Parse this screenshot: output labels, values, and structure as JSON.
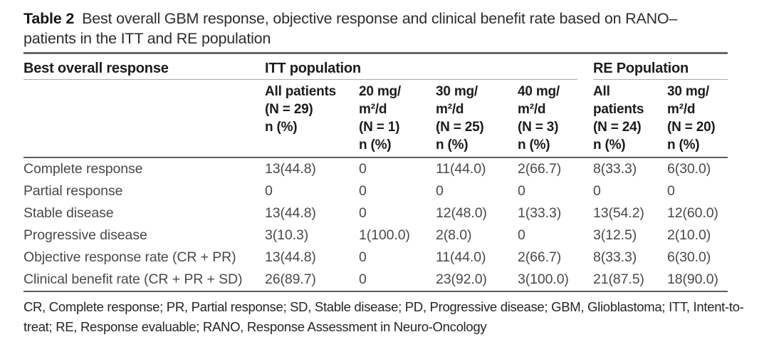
{
  "caption": {
    "label": "Table 2",
    "line1": "Best overall GBM response, objective response and clinical benefit rate based on RANO–",
    "line2": "patients in the ITT and RE population"
  },
  "table": {
    "stub_header": "Best overall response",
    "groups": [
      {
        "label": "ITT population",
        "span": 4
      },
      {
        "label": "RE Population",
        "span": 2
      }
    ],
    "columns": [
      {
        "lines": [
          "All patients",
          "(N = 29)",
          "n (%)"
        ]
      },
      {
        "lines": [
          "20 mg/",
          "m²/d",
          "(N = 1)",
          "n (%)"
        ]
      },
      {
        "lines": [
          "30 mg/",
          "m²/d",
          "(N = 25)",
          "n (%)"
        ]
      },
      {
        "lines": [
          "40 mg/",
          "m²/d",
          "(N = 3)",
          "n (%)"
        ]
      },
      {
        "lines": [
          "All",
          "patients",
          "(N = 24)",
          "n (%)"
        ]
      },
      {
        "lines": [
          "30 mg/",
          "m²/d",
          "(N = 20)",
          "n (%)"
        ]
      }
    ],
    "rows": [
      {
        "label": "Complete response",
        "values": [
          "13(44.8)",
          "0",
          "11(44.0)",
          "2(66.7)",
          "8(33.3)",
          "6(30.0)"
        ]
      },
      {
        "label": "Partial response",
        "values": [
          "0",
          "0",
          "0",
          "0",
          "0",
          "0"
        ]
      },
      {
        "label": "Stable disease",
        "values": [
          "13(44.8)",
          "0",
          "12(48.0)",
          "1(33.3)",
          "13(54.2)",
          "12(60.0)"
        ]
      },
      {
        "label": "Progressive disease",
        "values": [
          "3(10.3)",
          "1(100.0)",
          "2(8.0)",
          "0",
          "3(12.5)",
          "2(10.0)"
        ]
      },
      {
        "label": "Objective response rate (CR + PR)",
        "values": [
          "13(44.8)",
          "0",
          "11(44.0)",
          "2(66.7)",
          "8(33.3)",
          "6(30.0)"
        ]
      },
      {
        "label": "Clinical benefit rate (CR + PR + SD)",
        "values": [
          "26(89.7)",
          "0",
          "23(92.0)",
          "3(100.0)",
          "21(87.5)",
          "18(90.0)"
        ]
      }
    ]
  },
  "footnote": {
    "line1": "CR, Complete response; PR, Partial response; SD, Stable disease; PD, Progressive disease; GBM, Glioblastoma; ITT, Intent-to-",
    "line2": "treat; RE, Response evaluable; RANO, Response Assessment in Neuro-Oncology"
  },
  "colors": {
    "rule_dark": "#5b5d5f",
    "rule_light": "#a8aaac",
    "heading_text": "#1d1c1b",
    "body_text": "#494949",
    "background": "#ffffff"
  }
}
